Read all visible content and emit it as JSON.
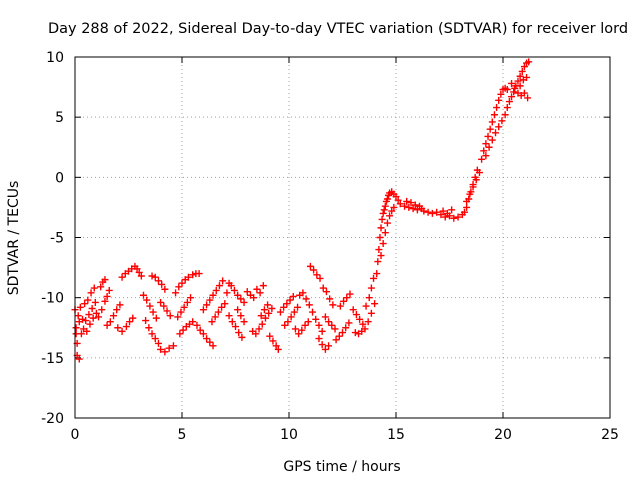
{
  "chart_data": {
    "type": "scatter",
    "title": "Day 288 of 2022, Sidereal Day-to-day VTEC variation (SDTVAR) for receiver lord",
    "xlabel": "GPS time / hours",
    "ylabel": "SDTVAR / TECUs",
    "xlim": [
      0,
      25
    ],
    "ylim": [
      -20,
      10
    ],
    "x_ticks": [
      0,
      5,
      10,
      15,
      20,
      25
    ],
    "x_tick_labels": [
      "0",
      "5",
      "10",
      "15",
      "20",
      "25"
    ],
    "y_ticks": [
      -20,
      -15,
      -10,
      -5,
      0,
      5,
      10
    ],
    "y_tick_labels": [
      "-20",
      "-15",
      "-10",
      "-5",
      "0",
      "5",
      "10"
    ],
    "grid": true,
    "marker": "+",
    "marker_color": "#ff0000",
    "series": [
      {
        "name": "SDTVAR",
        "points": [
          [
            0.0,
            -11.0
          ],
          [
            0.05,
            -12.5
          ],
          [
            0.1,
            -13.8
          ],
          [
            0.15,
            -11.5
          ],
          [
            0.2,
            -12.0
          ],
          [
            0.25,
            -10.8
          ],
          [
            0.3,
            -13.0
          ],
          [
            0.35,
            -11.8
          ],
          [
            0.4,
            -12.6
          ],
          [
            0.45,
            -10.5
          ],
          [
            0.5,
            -11.9
          ],
          [
            0.55,
            -12.8
          ],
          [
            0.6,
            -10.2
          ],
          [
            0.65,
            -11.4
          ],
          [
            0.7,
            -12.2
          ],
          [
            0.75,
            -9.6
          ],
          [
            0.8,
            -10.9
          ],
          [
            0.85,
            -11.7
          ],
          [
            0.9,
            -9.2
          ],
          [
            0.95,
            -10.4
          ],
          [
            1.0,
            -11.3
          ],
          [
            0.1,
            -14.8
          ],
          [
            0.2,
            -15.1
          ],
          [
            0.05,
            -13.0
          ],
          [
            1.2,
            -9.1
          ],
          [
            1.3,
            -8.7
          ],
          [
            1.4,
            -8.5
          ],
          [
            1.1,
            -11.6
          ],
          [
            1.25,
            -11.0
          ],
          [
            1.4,
            -10.3
          ],
          [
            1.5,
            -9.9
          ],
          [
            1.6,
            -9.4
          ],
          [
            1.5,
            -12.3
          ],
          [
            1.65,
            -12.0
          ],
          [
            1.8,
            -11.5
          ],
          [
            1.95,
            -11.0
          ],
          [
            2.1,
            -10.6
          ],
          [
            2.2,
            -8.3
          ],
          [
            2.35,
            -8.0
          ],
          [
            2.5,
            -7.8
          ],
          [
            2.65,
            -7.6
          ],
          [
            2.8,
            -7.4
          ],
          [
            2.9,
            -7.6
          ],
          [
            3.0,
            -7.9
          ],
          [
            3.1,
            -8.2
          ],
          [
            2.0,
            -12.5
          ],
          [
            2.2,
            -12.8
          ],
          [
            2.4,
            -12.4
          ],
          [
            2.55,
            -12.0
          ],
          [
            2.7,
            -11.7
          ],
          [
            3.2,
            -9.8
          ],
          [
            3.35,
            -10.2
          ],
          [
            3.5,
            -10.7
          ],
          [
            3.65,
            -11.2
          ],
          [
            3.8,
            -11.7
          ],
          [
            3.3,
            -11.9
          ],
          [
            3.45,
            -12.5
          ],
          [
            3.6,
            -13.0
          ],
          [
            3.75,
            -13.4
          ],
          [
            3.9,
            -13.8
          ],
          [
            3.6,
            -8.2
          ],
          [
            3.75,
            -8.3
          ],
          [
            3.9,
            -8.6
          ],
          [
            4.05,
            -8.9
          ],
          [
            4.2,
            -9.3
          ],
          [
            4.0,
            -10.4
          ],
          [
            4.15,
            -10.7
          ],
          [
            4.3,
            -11.1
          ],
          [
            4.45,
            -11.5
          ],
          [
            4.0,
            -14.3
          ],
          [
            4.2,
            -14.5
          ],
          [
            4.4,
            -14.2
          ],
          [
            4.6,
            -14.0
          ],
          [
            4.7,
            -9.6
          ],
          [
            4.85,
            -9.1
          ],
          [
            5.0,
            -8.8
          ],
          [
            5.15,
            -8.5
          ],
          [
            5.3,
            -8.3
          ],
          [
            4.8,
            -11.6
          ],
          [
            4.95,
            -11.2
          ],
          [
            5.1,
            -10.8
          ],
          [
            5.25,
            -10.4
          ],
          [
            5.4,
            -10.0
          ],
          [
            4.9,
            -13.0
          ],
          [
            5.05,
            -12.7
          ],
          [
            5.2,
            -12.4
          ],
          [
            5.35,
            -12.2
          ],
          [
            5.5,
            -12.0
          ],
          [
            5.5,
            -8.1
          ],
          [
            5.65,
            -8.0
          ],
          [
            5.8,
            -8.0
          ],
          [
            5.7,
            -12.3
          ],
          [
            5.85,
            -12.7
          ],
          [
            6.0,
            -13.0
          ],
          [
            6.15,
            -13.4
          ],
          [
            6.3,
            -13.7
          ],
          [
            6.45,
            -14.0
          ],
          [
            6.0,
            -11.0
          ],
          [
            6.15,
            -10.6
          ],
          [
            6.3,
            -10.2
          ],
          [
            6.45,
            -9.8
          ],
          [
            6.6,
            -9.4
          ],
          [
            6.75,
            -9.0
          ],
          [
            6.9,
            -8.6
          ],
          [
            6.4,
            -12.0
          ],
          [
            6.55,
            -11.6
          ],
          [
            6.7,
            -11.2
          ],
          [
            6.85,
            -10.8
          ],
          [
            7.0,
            -10.5
          ],
          [
            7.1,
            -9.6
          ],
          [
            7.2,
            -8.8
          ],
          [
            7.3,
            -9.0
          ],
          [
            7.45,
            -9.4
          ],
          [
            7.6,
            -9.8
          ],
          [
            7.75,
            -10.1
          ],
          [
            7.9,
            -10.4
          ],
          [
            7.2,
            -11.5
          ],
          [
            7.35,
            -12.0
          ],
          [
            7.5,
            -12.4
          ],
          [
            7.65,
            -12.9
          ],
          [
            7.8,
            -13.3
          ],
          [
            7.6,
            -11.0
          ],
          [
            7.75,
            -11.5
          ],
          [
            7.9,
            -12.0
          ],
          [
            8.05,
            -9.5
          ],
          [
            8.2,
            -9.8
          ],
          [
            8.35,
            -10.0
          ],
          [
            8.5,
            -9.3
          ],
          [
            8.65,
            -9.6
          ],
          [
            8.8,
            -9.0
          ],
          [
            8.3,
            -12.8
          ],
          [
            8.45,
            -13.0
          ],
          [
            8.6,
            -12.6
          ],
          [
            8.75,
            -12.2
          ],
          [
            8.9,
            -11.7
          ],
          [
            9.05,
            -11.3
          ],
          [
            9.2,
            -10.9
          ],
          [
            8.7,
            -11.5
          ],
          [
            8.85,
            -11.0
          ],
          [
            9.0,
            -10.6
          ],
          [
            9.1,
            -13.2
          ],
          [
            9.25,
            -13.6
          ],
          [
            9.4,
            -14.0
          ],
          [
            9.5,
            -14.3
          ],
          [
            9.6,
            -11.2
          ],
          [
            9.75,
            -10.8
          ],
          [
            9.9,
            -10.5
          ],
          [
            10.05,
            -10.2
          ],
          [
            10.2,
            -9.9
          ],
          [
            9.8,
            -12.3
          ],
          [
            9.95,
            -12.0
          ],
          [
            10.1,
            -11.6
          ],
          [
            10.25,
            -11.2
          ],
          [
            10.4,
            -10.8
          ],
          [
            10.3,
            -12.6
          ],
          [
            10.45,
            -13.0
          ],
          [
            10.6,
            -12.7
          ],
          [
            10.75,
            -12.3
          ],
          [
            10.9,
            -12.0
          ],
          [
            10.5,
            -9.8
          ],
          [
            10.65,
            -9.6
          ],
          [
            10.8,
            -10.1
          ],
          [
            10.95,
            -10.6
          ],
          [
            11.1,
            -11.2
          ],
          [
            11.25,
            -11.8
          ],
          [
            11.4,
            -12.3
          ],
          [
            11.55,
            -12.8
          ],
          [
            11.4,
            -13.4
          ],
          [
            11.55,
            -13.9
          ],
          [
            11.7,
            -14.3
          ],
          [
            11.85,
            -14.0
          ],
          [
            11.0,
            -7.4
          ],
          [
            11.15,
            -7.7
          ],
          [
            11.3,
            -8.1
          ],
          [
            11.45,
            -8.4
          ],
          [
            11.6,
            -9.2
          ],
          [
            11.75,
            -9.5
          ],
          [
            11.9,
            -10.1
          ],
          [
            12.05,
            -10.6
          ],
          [
            11.7,
            -11.6
          ],
          [
            11.85,
            -12.0
          ],
          [
            12.0,
            -12.3
          ],
          [
            12.15,
            -12.6
          ],
          [
            12.2,
            -13.5
          ],
          [
            12.35,
            -13.2
          ],
          [
            12.5,
            -12.9
          ],
          [
            12.65,
            -12.5
          ],
          [
            12.8,
            -12.1
          ],
          [
            12.4,
            -10.7
          ],
          [
            12.55,
            -10.3
          ],
          [
            12.7,
            -10.0
          ],
          [
            12.85,
            -9.7
          ],
          [
            13.0,
            -11.0
          ],
          [
            13.15,
            -11.4
          ],
          [
            13.3,
            -11.8
          ],
          [
            13.45,
            -12.2
          ],
          [
            13.1,
            -12.9
          ],
          [
            13.25,
            -13.0
          ],
          [
            13.4,
            -12.8
          ],
          [
            13.55,
            -12.6
          ],
          [
            13.6,
            -10.7
          ],
          [
            13.75,
            -10.0
          ],
          [
            13.85,
            -9.2
          ],
          [
            13.95,
            -8.4
          ],
          [
            13.7,
            -12.0
          ],
          [
            13.85,
            -11.3
          ],
          [
            14.0,
            -10.5
          ],
          [
            14.1,
            -8.0
          ],
          [
            14.15,
            -7.0
          ],
          [
            14.2,
            -6.0
          ],
          [
            14.25,
            -5.0
          ],
          [
            14.3,
            -4.2
          ],
          [
            14.35,
            -3.5
          ],
          [
            14.4,
            -3.0
          ],
          [
            14.45,
            -2.7
          ],
          [
            14.5,
            -2.4
          ],
          [
            14.55,
            -2.0
          ],
          [
            14.6,
            -1.8
          ],
          [
            14.65,
            -1.5
          ],
          [
            14.7,
            -1.3
          ],
          [
            14.8,
            -1.2
          ],
          [
            14.9,
            -1.4
          ],
          [
            15.0,
            -1.6
          ],
          [
            15.1,
            -1.9
          ],
          [
            14.3,
            -6.5
          ],
          [
            14.4,
            -5.5
          ],
          [
            14.5,
            -4.6
          ],
          [
            14.6,
            -3.8
          ],
          [
            14.7,
            -3.2
          ],
          [
            14.8,
            -2.8
          ],
          [
            14.9,
            -2.5
          ],
          [
            15.2,
            -2.2
          ],
          [
            15.4,
            -2.4
          ],
          [
            15.6,
            -2.5
          ],
          [
            15.8,
            -2.6
          ],
          [
            16.0,
            -2.7
          ],
          [
            16.2,
            -2.6
          ],
          [
            15.5,
            -2.0
          ],
          [
            15.7,
            -2.1
          ],
          [
            15.9,
            -2.3
          ],
          [
            16.1,
            -2.4
          ],
          [
            16.3,
            -2.8
          ],
          [
            16.5,
            -2.9
          ],
          [
            16.7,
            -3.0
          ],
          [
            16.9,
            -2.9
          ],
          [
            17.1,
            -3.1
          ],
          [
            17.3,
            -3.3
          ],
          [
            17.5,
            -3.2
          ],
          [
            17.7,
            -3.4
          ],
          [
            17.9,
            -3.3
          ],
          [
            18.1,
            -3.1
          ],
          [
            17.2,
            -2.8
          ],
          [
            17.4,
            -3.0
          ],
          [
            17.6,
            -2.7
          ],
          [
            18.2,
            -2.9
          ],
          [
            18.3,
            -2.5
          ],
          [
            18.4,
            -1.8
          ],
          [
            18.5,
            -1.2
          ],
          [
            18.6,
            -0.6
          ],
          [
            18.7,
            0.0
          ],
          [
            18.8,
            0.6
          ],
          [
            18.3,
            -2.0
          ],
          [
            18.45,
            -1.4
          ],
          [
            18.6,
            -0.8
          ],
          [
            18.75,
            -0.2
          ],
          [
            18.9,
            0.4
          ],
          [
            19.0,
            1.5
          ],
          [
            19.1,
            2.2
          ],
          [
            19.2,
            2.8
          ],
          [
            19.3,
            3.4
          ],
          [
            19.4,
            4.0
          ],
          [
            19.5,
            4.6
          ],
          [
            19.6,
            5.2
          ],
          [
            19.7,
            5.8
          ],
          [
            19.8,
            6.4
          ],
          [
            19.9,
            6.9
          ],
          [
            20.0,
            7.3
          ],
          [
            20.1,
            7.4
          ],
          [
            20.2,
            7.3
          ],
          [
            19.2,
            1.8
          ],
          [
            19.35,
            2.5
          ],
          [
            19.5,
            3.1
          ],
          [
            19.65,
            3.7
          ],
          [
            19.8,
            4.2
          ],
          [
            19.95,
            4.7
          ],
          [
            20.1,
            5.2
          ],
          [
            20.2,
            5.8
          ],
          [
            20.3,
            6.3
          ],
          [
            20.4,
            6.7
          ],
          [
            20.5,
            7.1
          ],
          [
            20.6,
            7.6
          ],
          [
            20.7,
            8.0
          ],
          [
            20.8,
            8.4
          ],
          [
            20.9,
            8.8
          ],
          [
            21.0,
            9.2
          ],
          [
            21.1,
            9.5
          ],
          [
            21.2,
            9.6
          ],
          [
            20.4,
            7.8
          ],
          [
            20.55,
            7.4
          ],
          [
            20.7,
            7.0
          ],
          [
            20.85,
            6.8
          ],
          [
            21.0,
            7.0
          ],
          [
            21.15,
            6.6
          ],
          [
            20.8,
            7.6
          ],
          [
            20.95,
            8.1
          ],
          [
            21.1,
            8.3
          ]
        ]
      }
    ]
  }
}
